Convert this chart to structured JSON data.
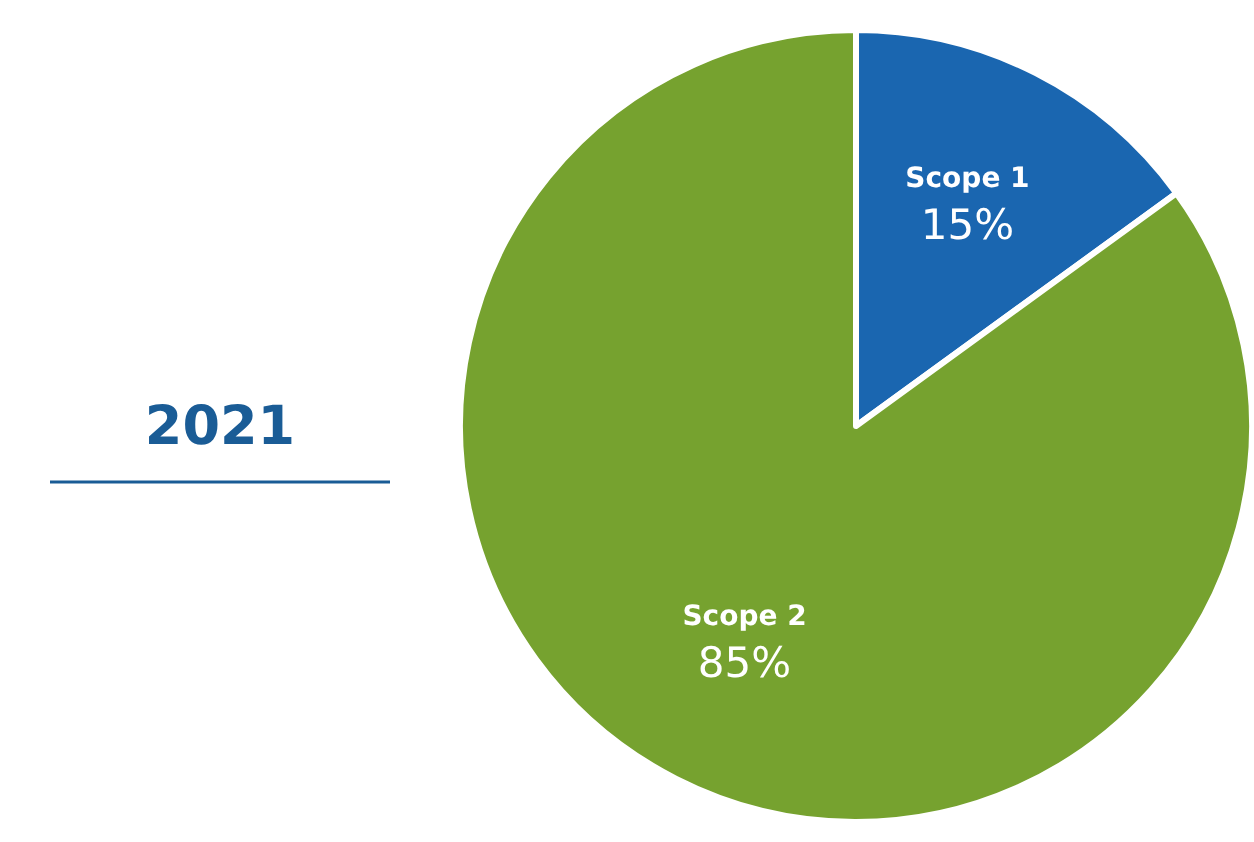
{
  "chart_data": {
    "type": "pie",
    "title": "2021",
    "categories": [
      "Scope 1",
      "Scope 2"
    ],
    "values": [
      15,
      85
    ],
    "colors": [
      "#1a66b0",
      "#76a22f"
    ],
    "value_labels": [
      "15%",
      "85%"
    ],
    "legend": false
  }
}
